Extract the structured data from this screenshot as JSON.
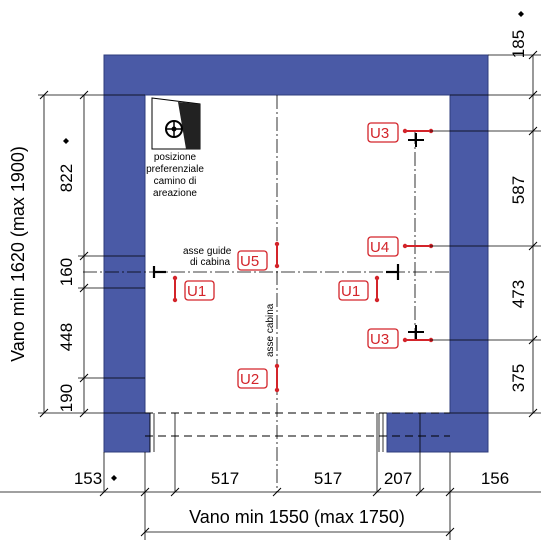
{
  "colors": {
    "wall": "#4a5aa6",
    "wall_edge": "#2f3c7c",
    "mark": "#d3242a"
  },
  "dims": {
    "top_right": "185",
    "right_587": "587",
    "right_473": "473",
    "right_375": "375",
    "left_822": "822",
    "left_160": "160",
    "left_448": "448",
    "left_190": "190",
    "left_total": "Vano min 1620 (max 1900)",
    "bottom_153": "153",
    "bottom_517a": "517",
    "bottom_517b": "517",
    "bottom_207": "207",
    "bottom_156": "156",
    "bottom_total": "Vano min 1550 (max 1750)"
  },
  "notes": {
    "vent_line1": "posizione",
    "vent_line2": "preferenziale",
    "vent_line3": "camino di",
    "vent_line4": "areazione",
    "guides_line1": "asse guide",
    "guides_line2": "di cabina",
    "cabin_axis": "asse cabina"
  },
  "labels": {
    "u1_left": "U1",
    "u1_right": "U1",
    "u2": "U2",
    "u3_top": "U3",
    "u3_bottom": "U3",
    "u4": "U4",
    "u5": "U5"
  },
  "icons": {
    "vent": "fan-icon",
    "marker": "diamond-icon"
  }
}
